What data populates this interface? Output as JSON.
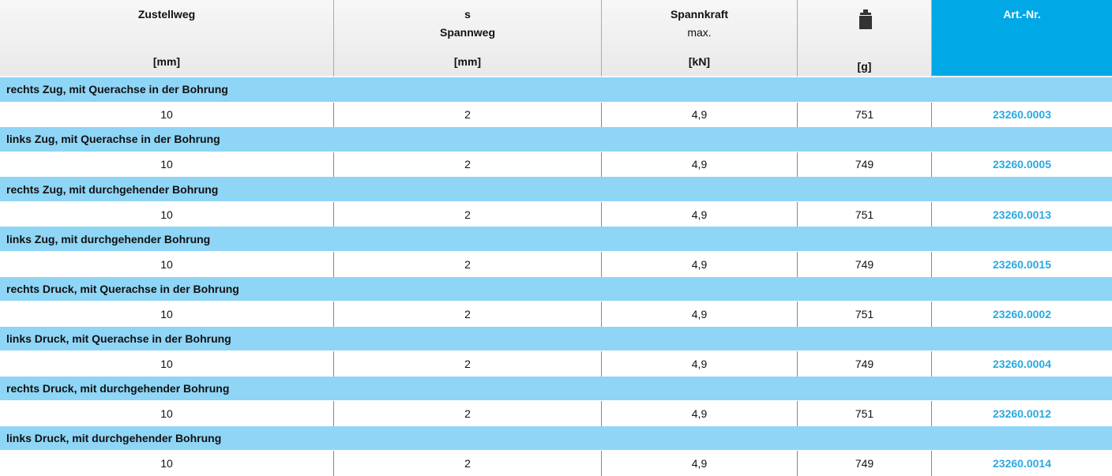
{
  "table": {
    "header": [
      [
        "Zustellweg",
        "[mm]"
      ],
      [
        "s",
        "Spannweg",
        "[mm]"
      ],
      [
        "Spannkraft",
        "max.",
        "[kN]"
      ],
      [
        "[g]"
      ],
      [
        "Art.-Nr."
      ]
    ],
    "groups": [
      {
        "title": "rechts Zug, mit Querachse in der Bohrung",
        "row": [
          10,
          2,
          "4,9",
          751,
          "23260.0003"
        ]
      },
      {
        "title": "links Zug, mit Querachse in der Bohrung",
        "row": [
          10,
          2,
          "4,9",
          749,
          "23260.0005"
        ]
      },
      {
        "title": "rechts Zug, mit durchgehender Bohrung",
        "row": [
          10,
          2,
          "4,9",
          751,
          "23260.0013"
        ]
      },
      {
        "title": "links Zug, mit durchgehender Bohrung",
        "row": [
          10,
          2,
          "4,9",
          749,
          "23260.0015"
        ]
      },
      {
        "title": "rechts Druck, mit Querachse in der Bohrung",
        "row": [
          10,
          2,
          "4,9",
          751,
          "23260.0002"
        ]
      },
      {
        "title": "links Druck, mit Querachse in der Bohrung",
        "row": [
          10,
          2,
          "4,9",
          749,
          "23260.0004"
        ]
      },
      {
        "title": "rechts Druck, mit durchgehender Bohrung",
        "row": [
          10,
          2,
          "4,9",
          751,
          "23260.0012"
        ]
      },
      {
        "title": "links Druck, mit durchgehender Bohrung",
        "row": [
          10,
          2,
          "4,9",
          749,
          "23260.0014"
        ]
      }
    ]
  }
}
